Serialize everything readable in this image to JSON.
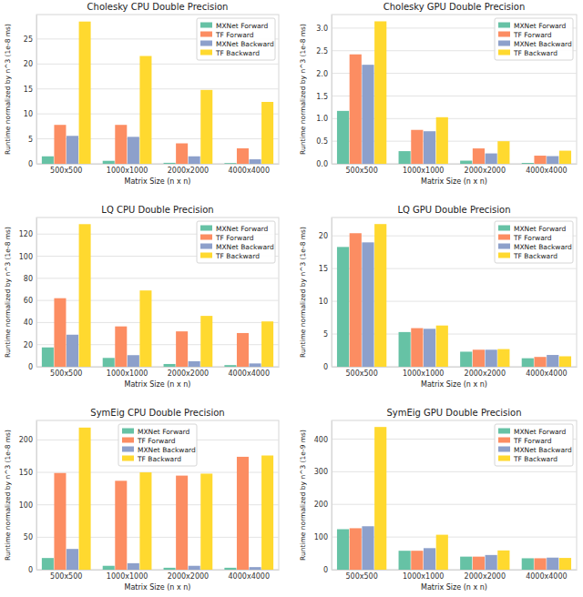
{
  "chart_data": [
    {
      "type": "bar",
      "title": "Cholesky CPU Double Precision",
      "x_label": "Matrix Size (n x n)",
      "y_label": "Runtime normalized by n^3 (1e-8 ms)",
      "categories": [
        "500x500",
        "1000x1000",
        "2000x2000",
        "4000x4000"
      ],
      "series": [
        {
          "name": "MXNet Forward",
          "color": "#66c2a5",
          "values": [
            1.5,
            0.6,
            0.2,
            0.15
          ]
        },
        {
          "name": "TF Forward",
          "color": "#fc8d62",
          "values": [
            7.8,
            7.8,
            4.1,
            3.1
          ]
        },
        {
          "name": "MXNet Backward",
          "color": "#8da0cb",
          "values": [
            5.6,
            5.4,
            1.5,
            0.9
          ]
        },
        {
          "name": "TF Backward",
          "color": "#ffd92f",
          "values": [
            28.5,
            21.6,
            14.8,
            12.4
          ]
        }
      ],
      "ylim": [
        0,
        29.9
      ],
      "yticks": [
        0,
        5,
        10,
        15,
        20,
        25
      ],
      "grid": true,
      "legend": "upper right"
    },
    {
      "type": "bar",
      "title": "Cholesky GPU Double Precision",
      "x_label": "Matrix Size (n x n)",
      "y_label": "Runtime normalized by n^3 (1e-8 ms)",
      "categories": [
        "500x500",
        "1000x1000",
        "2000x2000",
        "4000x4000"
      ],
      "series": [
        {
          "name": "MXNet Forward",
          "color": "#66c2a5",
          "values": [
            1.17,
            0.28,
            0.07,
            0.02
          ]
        },
        {
          "name": "TF Forward",
          "color": "#fc8d62",
          "values": [
            2.42,
            0.75,
            0.34,
            0.18
          ]
        },
        {
          "name": "MXNet Backward",
          "color": "#8da0cb",
          "values": [
            2.19,
            0.72,
            0.23,
            0.17
          ]
        },
        {
          "name": "TF Backward",
          "color": "#ffd92f",
          "values": [
            3.15,
            1.03,
            0.5,
            0.29
          ]
        }
      ],
      "ylim": [
        0,
        3.3
      ],
      "yticks": [
        {
          "value": 0,
          "label": "0.0"
        },
        {
          "value": 0.5,
          "label": "0.5"
        },
        {
          "value": 1,
          "label": "1.0"
        },
        {
          "value": 1.5,
          "label": "1.5"
        },
        {
          "value": 2,
          "label": "2.0"
        },
        {
          "value": 2.5,
          "label": "2.5"
        },
        {
          "value": 3,
          "label": "3.0"
        }
      ],
      "grid": true,
      "legend": "upper right"
    },
    {
      "type": "bar",
      "title": "LQ CPU Double Precision",
      "x_label": "Matrix Size (n x n)",
      "y_label": "Runtime normalized by n^3 (1e-8 ms)",
      "categories": [
        "500x500",
        "1000x1000",
        "2000x2000",
        "4000x4000"
      ],
      "series": [
        {
          "name": "MXNet Forward",
          "color": "#66c2a5",
          "values": [
            17.5,
            8,
            2.5,
            1.5
          ]
        },
        {
          "name": "TF Forward",
          "color": "#fc8d62",
          "values": [
            62,
            36.5,
            32,
            30.5
          ]
        },
        {
          "name": "MXNet Backward",
          "color": "#8da0cb",
          "values": [
            29,
            10.5,
            5,
            3
          ]
        },
        {
          "name": "TF Backward",
          "color": "#ffd92f",
          "values": [
            129,
            69,
            46,
            41
          ]
        }
      ],
      "ylim": [
        0,
        135
      ],
      "yticks": [
        0,
        20,
        40,
        60,
        80,
        100,
        120
      ],
      "grid": true,
      "legend": "upper right"
    },
    {
      "type": "bar",
      "title": "LQ GPU Double Precision",
      "x_label": "Matrix Size (n x n)",
      "y_label": "Runtime normalized by n^3 (1e-8 ms)",
      "categories": [
        "500x500",
        "1000x1000",
        "2000x2000",
        "4000x4000"
      ],
      "series": [
        {
          "name": "MXNet Forward",
          "color": "#66c2a5",
          "values": [
            18.3,
            5.3,
            2.3,
            1.3
          ]
        },
        {
          "name": "TF Forward",
          "color": "#fc8d62",
          "values": [
            20.4,
            5.9,
            2.6,
            1.5
          ]
        },
        {
          "name": "MXNet Backward",
          "color": "#8da0cb",
          "values": [
            19,
            5.8,
            2.6,
            1.8
          ]
        },
        {
          "name": "TF Backward",
          "color": "#ffd92f",
          "values": [
            21.8,
            6.3,
            2.7,
            1.6
          ]
        }
      ],
      "ylim": [
        0,
        22.8
      ],
      "yticks": [
        0,
        5,
        10,
        15,
        20
      ],
      "grid": true,
      "legend": "upper right"
    },
    {
      "type": "bar",
      "title": "SymEig CPU Double Precision",
      "x_label": "Matrix Size (n x n)",
      "y_label": "Runtime normalized by n^3 (1e-8 ms)",
      "categories": [
        "500x500",
        "1000x1000",
        "2000x2000",
        "4000x4000"
      ],
      "series": [
        {
          "name": "MXNet Forward",
          "color": "#66c2a5",
          "values": [
            18,
            6,
            3,
            3
          ]
        },
        {
          "name": "TF Forward",
          "color": "#fc8d62",
          "values": [
            149,
            137,
            145,
            174
          ]
        },
        {
          "name": "MXNet Backward",
          "color": "#8da0cb",
          "values": [
            32,
            10,
            6,
            4
          ]
        },
        {
          "name": "TF Backward",
          "color": "#ffd92f",
          "values": [
            219,
            150,
            148,
            176
          ]
        }
      ],
      "ylim": [
        0,
        230
      ],
      "yticks": [
        0,
        50,
        100,
        150,
        200
      ],
      "grid": true,
      "legend": "upper center"
    },
    {
      "type": "bar",
      "title": "SymEig GPU Double Precision",
      "x_label": "Matrix Size (n x n)",
      "y_label": "Runtime normalized by n^3 (1e-9 ms)",
      "categories": [
        "500x500",
        "1000x1000",
        "2000x2000",
        "4000x4000"
      ],
      "series": [
        {
          "name": "MXNet Forward",
          "color": "#66c2a5",
          "values": [
            124,
            58,
            40,
            35
          ]
        },
        {
          "name": "TF Forward",
          "color": "#fc8d62",
          "values": [
            127,
            58,
            40,
            35
          ]
        },
        {
          "name": "MXNet Backward",
          "color": "#8da0cb",
          "values": [
            133,
            66,
            45,
            37
          ]
        },
        {
          "name": "TF Backward",
          "color": "#ffd92f",
          "values": [
            437,
            107,
            59,
            36
          ]
        }
      ],
      "ylim": [
        0,
        457
      ],
      "yticks": [
        0,
        100,
        200,
        300,
        400
      ],
      "grid": true,
      "legend": "upper right"
    }
  ]
}
